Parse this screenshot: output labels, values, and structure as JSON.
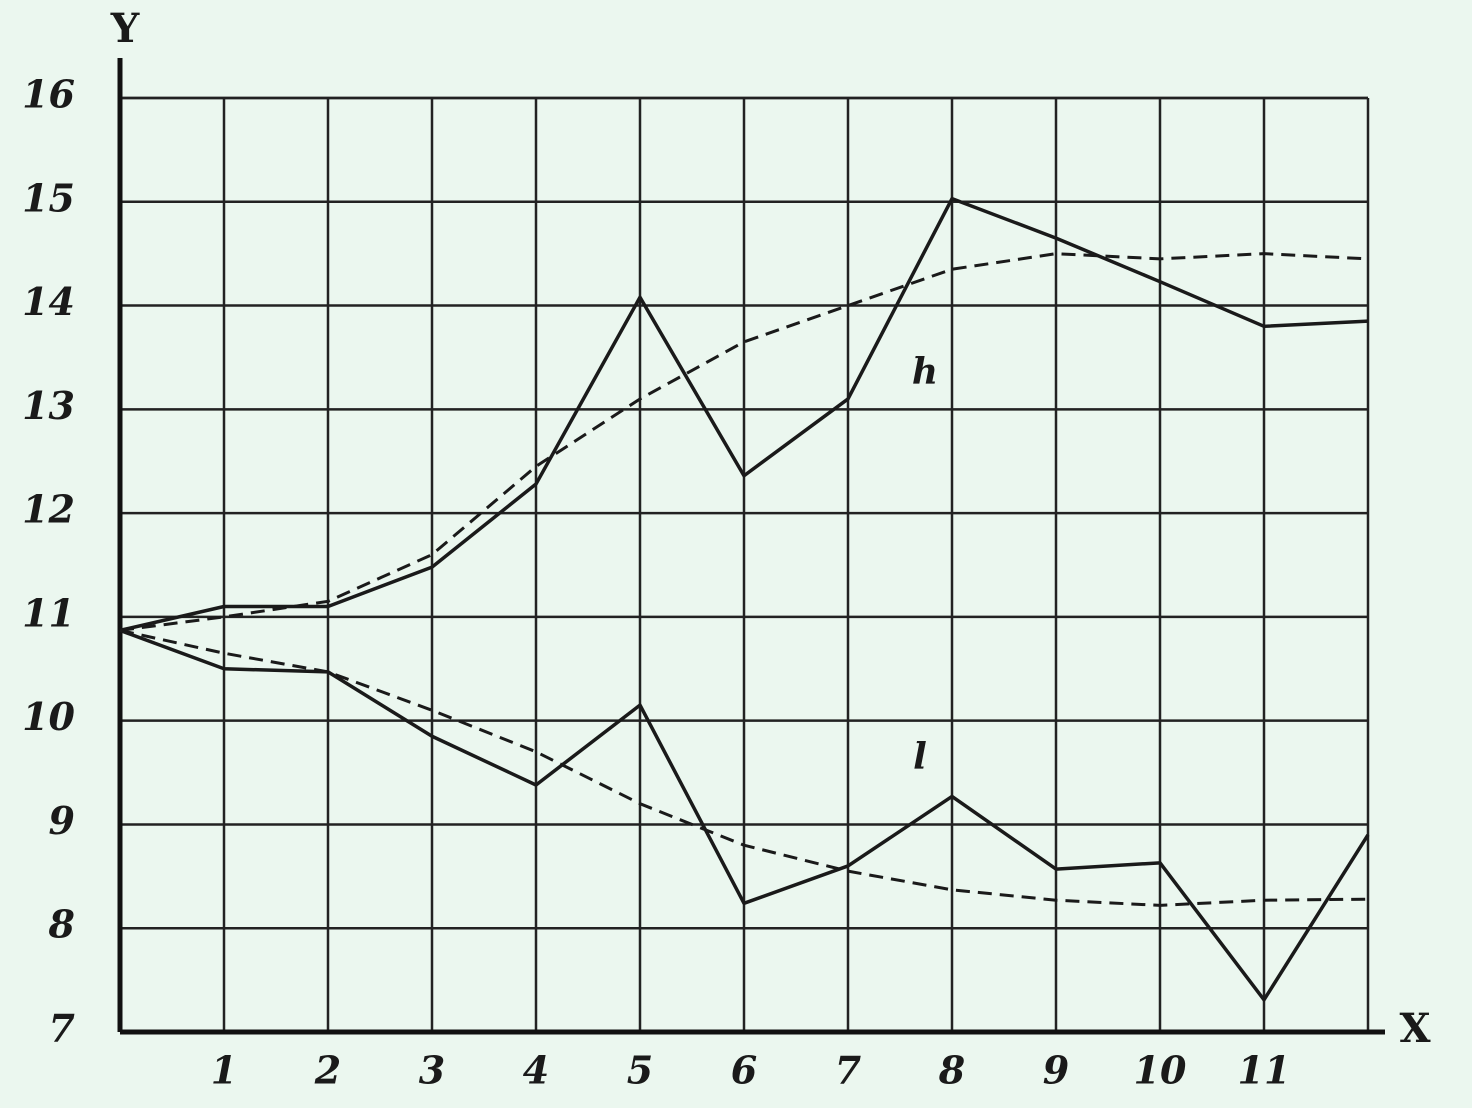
{
  "chart_data": {
    "type": "line",
    "x_label": "X",
    "y_label": "Y",
    "x": [
      0,
      1,
      2,
      3,
      4,
      5,
      6,
      7,
      8,
      9,
      10,
      11,
      12
    ],
    "series": [
      {
        "color": "#1a1a1a",
        "dashed": false,
        "values": [
          10.87,
          11.1,
          11.1,
          11.48,
          12.28,
          14.08,
          12.36,
          13.1,
          15.03,
          14.65,
          14.23,
          13.8,
          13.85
        ]
      },
      {
        "color": "#1a1a1a",
        "dashed": true,
        "values": [
          10.87,
          11.0,
          11.15,
          11.6,
          12.45,
          13.1,
          13.65,
          14.0,
          14.35,
          14.5,
          14.45,
          14.5,
          14.45
        ]
      },
      {
        "color": "#1a1a1a",
        "dashed": false,
        "values": [
          10.87,
          10.5,
          10.47,
          9.85,
          9.38,
          10.15,
          8.24,
          8.6,
          9.27,
          8.57,
          8.63,
          7.31,
          8.9
        ]
      },
      {
        "color": "#1a1a1a",
        "dashed": true,
        "values": [
          10.87,
          10.65,
          10.47,
          10.1,
          9.7,
          9.2,
          8.8,
          8.55,
          8.37,
          8.27,
          8.22,
          8.27,
          8.28
        ]
      }
    ],
    "annotations": [
      "h",
      "l"
    ],
    "xlim": [
      0,
      12
    ],
    "ylim": [
      7,
      16
    ],
    "xticks": [
      1,
      2,
      3,
      4,
      5,
      6,
      7,
      8,
      9,
      10,
      11
    ],
    "yticks": [
      7,
      8,
      9,
      10,
      11,
      12,
      13,
      14,
      15,
      16
    ],
    "grid": true
  }
}
